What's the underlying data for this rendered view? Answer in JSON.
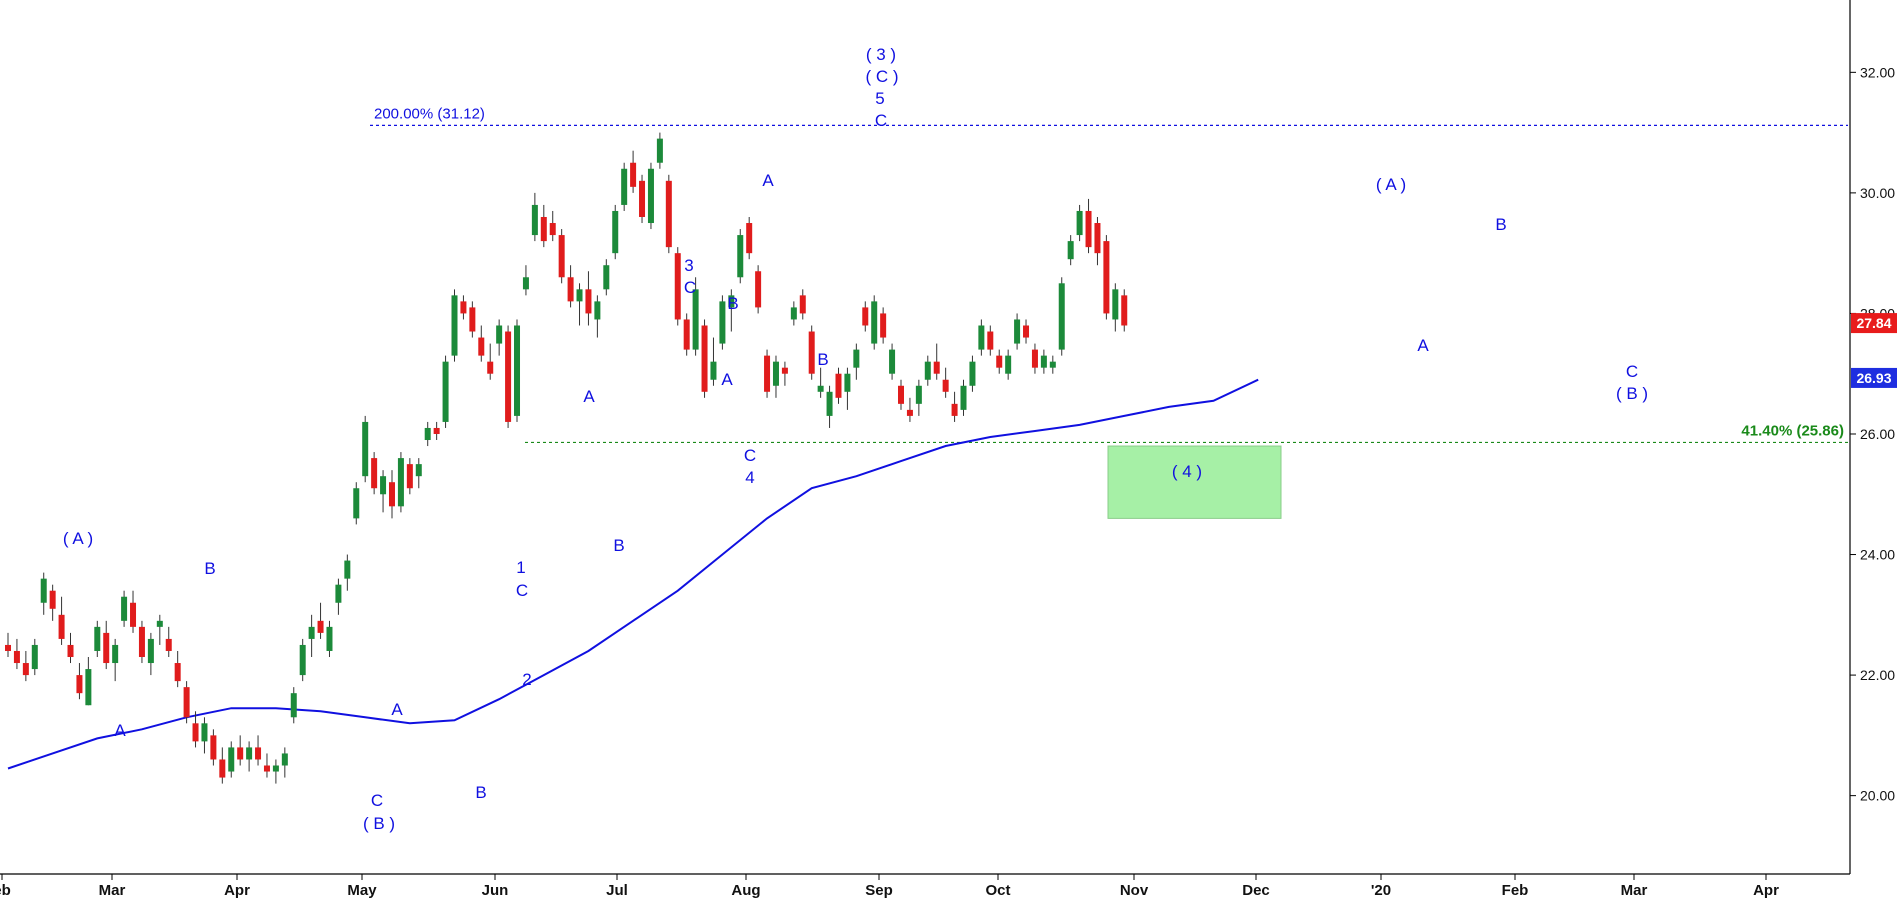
{
  "chart_data": {
    "type": "candlestick",
    "y_axis": {
      "ticks": [
        "20.00",
        "22.00",
        "24.00",
        "26.00",
        "28.00",
        "30.00",
        "32.00"
      ],
      "ylim": [
        18.7,
        33.2
      ],
      "side": "right"
    },
    "x_axis": {
      "ticks": [
        "eb",
        "Mar",
        "Apr",
        "May",
        "Jun",
        "Jul",
        "Aug",
        "Sep",
        "Oct",
        "Nov",
        "Dec",
        "'20",
        "Feb",
        "Mar",
        "Apr"
      ]
    },
    "moving_average": {
      "color": "#1010e0",
      "last_value_label": "26.93",
      "points": [
        [
          0,
          20.45
        ],
        [
          5,
          20.7
        ],
        [
          10,
          20.95
        ],
        [
          15,
          21.1
        ],
        [
          20,
          21.3
        ],
        [
          25,
          21.45
        ],
        [
          30,
          21.45
        ],
        [
          35,
          21.4
        ],
        [
          40,
          21.3
        ],
        [
          45,
          21.2
        ],
        [
          50,
          21.25
        ],
        [
          55,
          21.6
        ],
        [
          60,
          22.0
        ],
        [
          65,
          22.4
        ],
        [
          70,
          22.9
        ],
        [
          75,
          23.4
        ],
        [
          80,
          24.0
        ],
        [
          85,
          24.6
        ],
        [
          90,
          25.1
        ],
        [
          95,
          25.3
        ],
        [
          100,
          25.55
        ],
        [
          105,
          25.8
        ],
        [
          110,
          25.95
        ],
        [
          115,
          26.05
        ],
        [
          120,
          26.15
        ],
        [
          125,
          26.3
        ],
        [
          130,
          26.45
        ],
        [
          135,
          26.55
        ],
        [
          140,
          26.9
        ]
      ]
    },
    "candles": [
      [
        22.5,
        22.7,
        22.3,
        22.4
      ],
      [
        22.4,
        22.6,
        22.1,
        22.2
      ],
      [
        22.2,
        22.4,
        21.9,
        22.0
      ],
      [
        22.1,
        22.6,
        22.0,
        22.5
      ],
      [
        23.2,
        23.7,
        23.0,
        23.6
      ],
      [
        23.4,
        23.5,
        22.9,
        23.1
      ],
      [
        23.0,
        23.3,
        22.5,
        22.6
      ],
      [
        22.5,
        22.7,
        22.2,
        22.3
      ],
      [
        22.0,
        22.2,
        21.6,
        21.7
      ],
      [
        21.5,
        22.3,
        21.5,
        22.1
      ],
      [
        22.4,
        22.9,
        22.3,
        22.8
      ],
      [
        22.7,
        22.9,
        22.1,
        22.2
      ],
      [
        22.2,
        22.6,
        21.9,
        22.5
      ],
      [
        22.9,
        23.4,
        22.8,
        23.3
      ],
      [
        23.2,
        23.4,
        22.7,
        22.8
      ],
      [
        22.8,
        22.9,
        22.2,
        22.3
      ],
      [
        22.2,
        22.7,
        22.0,
        22.6
      ],
      [
        22.8,
        23.0,
        22.5,
        22.9
      ],
      [
        22.6,
        22.8,
        22.3,
        22.4
      ],
      [
        22.2,
        22.4,
        21.8,
        21.9
      ],
      [
        21.8,
        21.9,
        21.2,
        21.3
      ],
      [
        21.2,
        21.4,
        20.8,
        20.9
      ],
      [
        20.9,
        21.3,
        20.7,
        21.2
      ],
      [
        21.0,
        21.1,
        20.5,
        20.6
      ],
      [
        20.6,
        20.8,
        20.2,
        20.3
      ],
      [
        20.4,
        20.9,
        20.3,
        20.8
      ],
      [
        20.8,
        21.0,
        20.5,
        20.6
      ],
      [
        20.6,
        20.9,
        20.4,
        20.8
      ],
      [
        20.8,
        21.0,
        20.5,
        20.6
      ],
      [
        20.5,
        20.7,
        20.3,
        20.4
      ],
      [
        20.4,
        20.6,
        20.2,
        20.5
      ],
      [
        20.5,
        20.8,
        20.3,
        20.7
      ],
      [
        21.3,
        21.8,
        21.2,
        21.7
      ],
      [
        22.0,
        22.6,
        21.9,
        22.5
      ],
      [
        22.6,
        23.0,
        22.3,
        22.8
      ],
      [
        22.9,
        23.2,
        22.6,
        22.7
      ],
      [
        22.4,
        22.9,
        22.3,
        22.8
      ],
      [
        23.2,
        23.6,
        23.0,
        23.5
      ],
      [
        23.6,
        24.0,
        23.4,
        23.9
      ],
      [
        24.6,
        25.2,
        24.5,
        25.1
      ],
      [
        25.3,
        26.3,
        25.2,
        26.2
      ],
      [
        25.6,
        25.7,
        25.0,
        25.1
      ],
      [
        25.0,
        25.4,
        24.7,
        25.3
      ],
      [
        25.2,
        25.4,
        24.6,
        24.8
      ],
      [
        24.8,
        25.7,
        24.7,
        25.6
      ],
      [
        25.5,
        25.6,
        25.0,
        25.1
      ],
      [
        25.3,
        25.6,
        25.1,
        25.5
      ],
      [
        25.9,
        26.2,
        25.8,
        26.1
      ],
      [
        26.1,
        26.2,
        25.9,
        26.0
      ],
      [
        26.2,
        27.3,
        26.1,
        27.2
      ],
      [
        27.3,
        28.4,
        27.2,
        28.3
      ],
      [
        28.2,
        28.3,
        27.9,
        28.0
      ],
      [
        28.1,
        28.2,
        27.6,
        27.7
      ],
      [
        27.6,
        27.8,
        27.2,
        27.3
      ],
      [
        27.2,
        27.5,
        26.9,
        27.0
      ],
      [
        27.5,
        27.9,
        27.3,
        27.8
      ],
      [
        27.7,
        27.8,
        26.1,
        26.2
      ],
      [
        26.3,
        27.9,
        26.2,
        27.8
      ],
      [
        28.4,
        28.8,
        28.3,
        28.6
      ],
      [
        29.3,
        30.0,
        29.2,
        29.8
      ],
      [
        29.6,
        29.8,
        29.1,
        29.2
      ],
      [
        29.5,
        29.7,
        29.2,
        29.3
      ],
      [
        29.3,
        29.4,
        28.5,
        28.6
      ],
      [
        28.6,
        28.8,
        28.1,
        28.2
      ],
      [
        28.2,
        28.5,
        27.8,
        28.4
      ],
      [
        28.4,
        28.7,
        27.8,
        28.0
      ],
      [
        27.9,
        28.3,
        27.6,
        28.2
      ],
      [
        28.4,
        28.9,
        28.3,
        28.8
      ],
      [
        29.0,
        29.8,
        28.9,
        29.7
      ],
      [
        29.8,
        30.5,
        29.7,
        30.4
      ],
      [
        30.5,
        30.7,
        30.0,
        30.1
      ],
      [
        30.2,
        30.3,
        29.5,
        29.6
      ],
      [
        29.5,
        30.5,
        29.4,
        30.4
      ],
      [
        30.5,
        31.0,
        30.4,
        30.9
      ],
      [
        30.2,
        30.3,
        29.0,
        29.1
      ],
      [
        29.0,
        29.1,
        27.8,
        27.9
      ],
      [
        27.9,
        28.0,
        27.3,
        27.4
      ],
      [
        27.4,
        28.6,
        27.3,
        28.4
      ],
      [
        27.8,
        27.9,
        26.6,
        26.7
      ],
      [
        26.9,
        27.6,
        26.8,
        27.2
      ],
      [
        27.5,
        28.3,
        27.4,
        28.2
      ],
      [
        28.1,
        28.4,
        27.7,
        28.3
      ],
      [
        28.6,
        29.4,
        28.5,
        29.3
      ],
      [
        29.5,
        29.6,
        28.9,
        29.0
      ],
      [
        28.7,
        28.8,
        28.0,
        28.1
      ],
      [
        27.3,
        27.4,
        26.6,
        26.7
      ],
      [
        26.8,
        27.3,
        26.6,
        27.2
      ],
      [
        27.1,
        27.2,
        26.8,
        27.0
      ],
      [
        27.9,
        28.2,
        27.8,
        28.1
      ],
      [
        28.3,
        28.4,
        27.9,
        28.0
      ],
      [
        27.7,
        27.8,
        26.9,
        27.0
      ],
      [
        26.7,
        27.1,
        26.6,
        26.8
      ],
      [
        26.3,
        26.8,
        26.1,
        26.7
      ],
      [
        27.0,
        27.1,
        26.5,
        26.6
      ],
      [
        26.7,
        27.1,
        26.4,
        27.0
      ],
      [
        27.1,
        27.5,
        26.9,
        27.4
      ],
      [
        28.1,
        28.2,
        27.7,
        27.8
      ],
      [
        27.5,
        28.3,
        27.4,
        28.2
      ],
      [
        28.0,
        28.1,
        27.5,
        27.6
      ],
      [
        27.0,
        27.5,
        26.9,
        27.4
      ],
      [
        26.8,
        26.9,
        26.4,
        26.5
      ],
      [
        26.4,
        26.6,
        26.2,
        26.3
      ],
      [
        26.5,
        26.9,
        26.3,
        26.8
      ],
      [
        26.9,
        27.3,
        26.8,
        27.2
      ],
      [
        27.2,
        27.5,
        26.9,
        27.0
      ],
      [
        26.9,
        27.1,
        26.6,
        26.7
      ],
      [
        26.5,
        26.7,
        26.2,
        26.3
      ],
      [
        26.4,
        26.9,
        26.3,
        26.8
      ],
      [
        26.8,
        27.3,
        26.7,
        27.2
      ],
      [
        27.4,
        27.9,
        27.3,
        27.8
      ],
      [
        27.7,
        27.8,
        27.3,
        27.4
      ],
      [
        27.3,
        27.4,
        27.0,
        27.1
      ],
      [
        27.0,
        27.4,
        26.9,
        27.3
      ],
      [
        27.5,
        28.0,
        27.4,
        27.9
      ],
      [
        27.8,
        27.9,
        27.5,
        27.6
      ],
      [
        27.4,
        27.5,
        27.0,
        27.1
      ],
      [
        27.1,
        27.4,
        27.0,
        27.3
      ],
      [
        27.1,
        27.3,
        27.0,
        27.2
      ],
      [
        27.4,
        28.6,
        27.3,
        28.5
      ],
      [
        28.9,
        29.3,
        28.8,
        29.2
      ],
      [
        29.3,
        29.8,
        29.2,
        29.7
      ],
      [
        29.7,
        29.9,
        29.0,
        29.1
      ],
      [
        29.5,
        29.6,
        28.8,
        29.0
      ],
      [
        29.2,
        29.3,
        27.9,
        28.0
      ],
      [
        27.9,
        28.5,
        27.7,
        28.4
      ],
      [
        28.3,
        28.4,
        27.7,
        27.8
      ]
    ]
  },
  "annotations": [
    {
      "text": "( A )"
    },
    {
      "text": "B"
    },
    {
      "text": "A"
    },
    {
      "text": "A"
    },
    {
      "text": "C"
    },
    {
      "text": "( B )"
    },
    {
      "text": "B"
    },
    {
      "text": "1"
    },
    {
      "text": "C"
    },
    {
      "text": "2"
    },
    {
      "text": "A"
    },
    {
      "text": "B"
    },
    {
      "text": "3"
    },
    {
      "text": "C"
    },
    {
      "text": "B"
    },
    {
      "text": "A"
    },
    {
      "text": "C"
    },
    {
      "text": "4"
    },
    {
      "text": "A"
    },
    {
      "text": "B"
    },
    {
      "text": "( 3 )"
    },
    {
      "text": "( C )"
    },
    {
      "text": "5"
    },
    {
      "text": "C"
    },
    {
      "text": "( 4 )"
    },
    {
      "text": "( A )"
    },
    {
      "text": "A"
    },
    {
      "text": "B"
    },
    {
      "text": "C"
    },
    {
      "text": "( B )"
    }
  ],
  "fib_levels": [
    {
      "label": "200.00% (31.12)",
      "value": 31.12,
      "color": "#1010e0"
    },
    {
      "label": "41.40% (25.86)",
      "value": 25.86,
      "color": "#1a8a1a"
    }
  ],
  "target_box": {
    "fill": "#a6f0a6",
    "low": 24.6,
    "high": 25.8,
    "label": "( 4 )"
  },
  "price_tags": [
    {
      "label": "27.84",
      "value": 27.84,
      "color": "#e81c1c"
    },
    {
      "label": "26.93",
      "value": 26.93,
      "color": "#1e2ee0"
    }
  ],
  "colors": {
    "up": "#1c8a3a",
    "down": "#e01c1c",
    "wick": "#333333"
  }
}
